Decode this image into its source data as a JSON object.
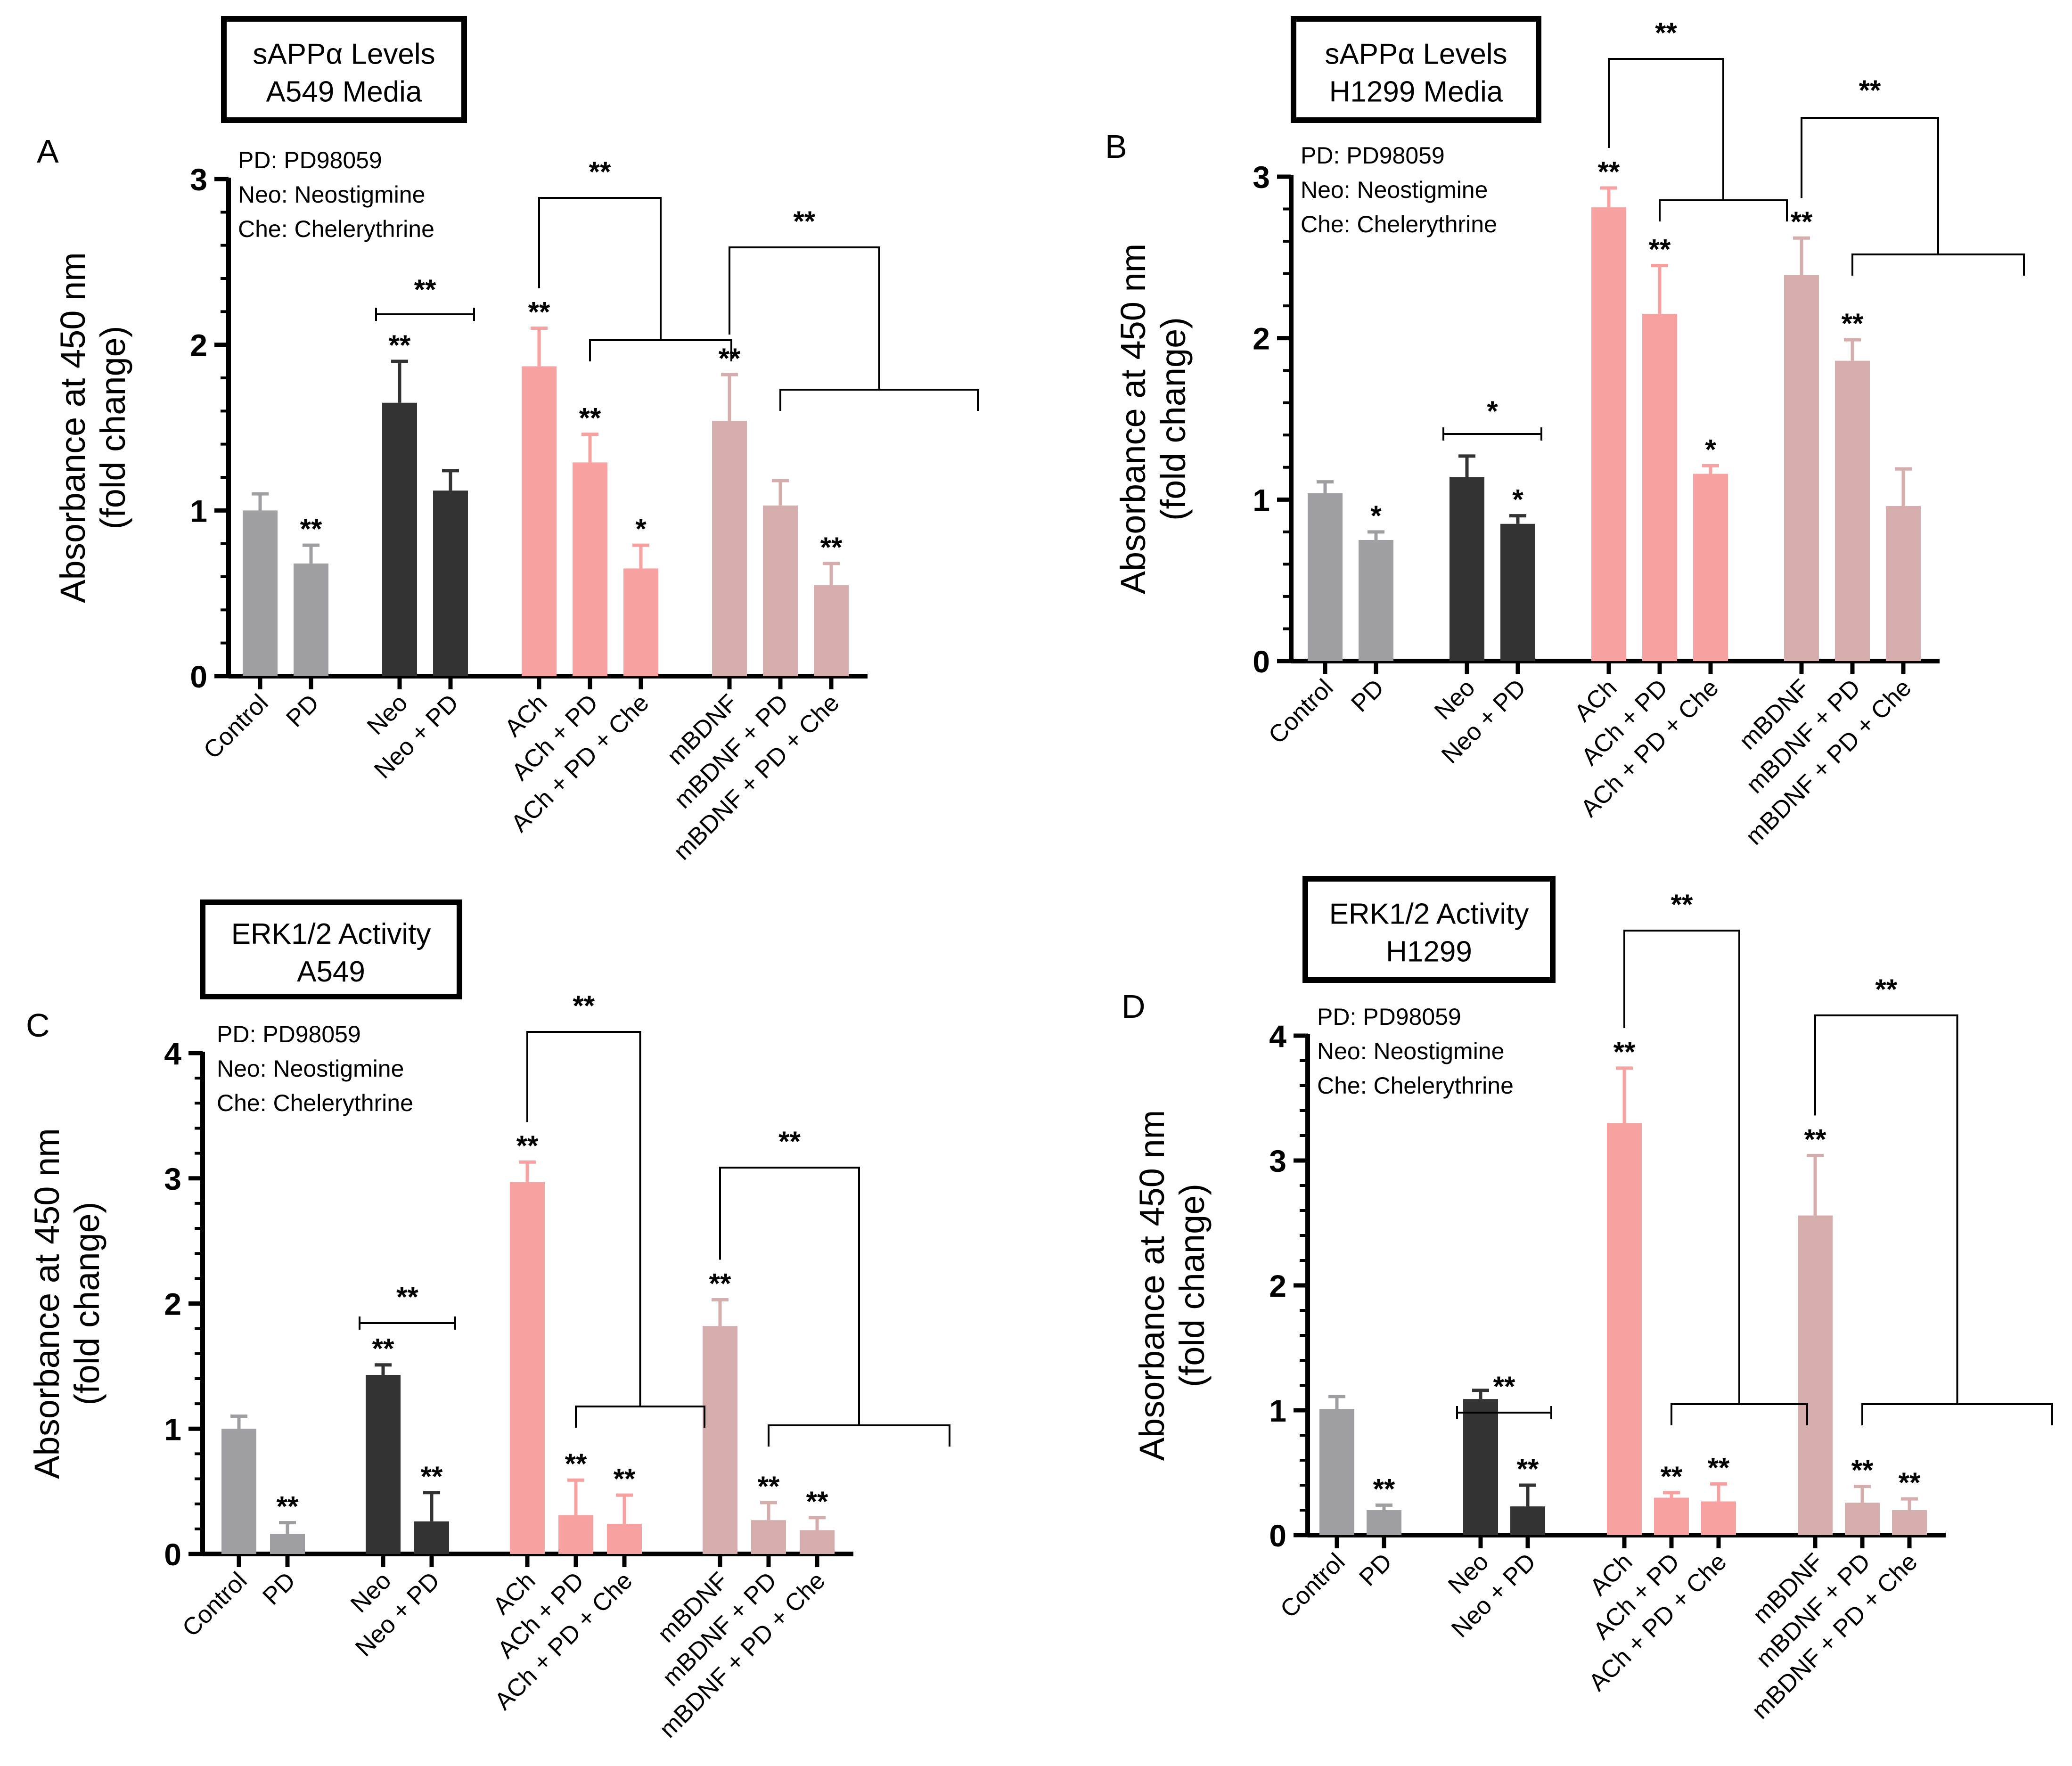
{
  "figure": {
    "colors": {
      "control": "#9e9ea3",
      "neo": "#333333",
      "ach": "#f7a1a1",
      "mbdnf": "#d6adad"
    },
    "legend": [
      "PD: PD98059",
      "Neo: Neostigmine",
      "Che: Chelerythrine"
    ]
  },
  "chart_data": [
    {
      "type": "bar",
      "panel": "A",
      "title": "sAPPα Levels\nA549 Media",
      "xlabel": "",
      "ylabel": "Absorbance at 450 nm\n(fold change)",
      "ylim": [
        0,
        3
      ],
      "yticks": [
        "0",
        "1",
        "2",
        "3"
      ],
      "categories": [
        "Control",
        "PD",
        "Neo",
        "Neo + PD",
        "ACh",
        "ACh + PD",
        "ACh + PD + Che",
        "mBDNF",
        "mBDNF + PD",
        "mBDNF + PD + Che"
      ],
      "values": [
        1.0,
        0.68,
        1.65,
        1.12,
        1.87,
        1.29,
        0.65,
        1.54,
        1.03,
        0.55
      ],
      "errors": [
        0.1,
        0.11,
        0.25,
        0.12,
        0.23,
        0.17,
        0.14,
        0.28,
        0.15,
        0.13
      ],
      "stars": [
        "",
        "**",
        "**",
        "",
        "**",
        "**",
        "*",
        "**",
        "",
        "**"
      ],
      "comparisons": [
        {
          "type": "line",
          "from": "Neo",
          "to": "Neo + PD",
          "label": "**"
        },
        {
          "type": "bracket",
          "from": "ACh",
          "to": [
            "ACh + PD",
            "ACh + PD + Che"
          ],
          "label": "**"
        },
        {
          "type": "bracket",
          "from": "mBDNF",
          "to": [
            "mBDNF + PD",
            "mBDNF + PD + Che"
          ],
          "label": "**"
        }
      ]
    },
    {
      "type": "bar",
      "panel": "B",
      "title": "sAPPα Levels\nH1299 Media",
      "xlabel": "",
      "ylabel": "Absorbance at 450 nm\n(fold change)",
      "ylim": [
        0,
        3
      ],
      "yticks": [
        "0",
        "1",
        "2",
        "3"
      ],
      "categories": [
        "Control",
        "PD",
        "Neo",
        "Neo + PD",
        "ACh",
        "ACh + PD",
        "ACh + PD + Che",
        "mBDNF",
        "mBDNF + PD",
        "mBDNF + PD + Che"
      ],
      "values": [
        1.04,
        0.75,
        1.14,
        0.85,
        2.81,
        2.15,
        1.16,
        2.39,
        1.86,
        0.96
      ],
      "errors": [
        0.07,
        0.05,
        0.13,
        0.05,
        0.12,
        0.3,
        0.05,
        0.23,
        0.13,
        0.23
      ],
      "stars": [
        "",
        "*",
        "",
        "*",
        "**",
        "**",
        "*",
        "**",
        "**",
        ""
      ],
      "comparisons": [
        {
          "type": "line",
          "from": "Neo",
          "to": "Neo + PD",
          "label": "*"
        },
        {
          "type": "bracket",
          "from": "ACh",
          "to": [
            "ACh + PD",
            "ACh + PD + Che"
          ],
          "label": "**"
        },
        {
          "type": "bracket",
          "from": "mBDNF",
          "to": [
            "mBDNF + PD",
            "mBDNF + PD + Che"
          ],
          "label": "**"
        }
      ]
    },
    {
      "type": "bar",
      "panel": "C",
      "title": "ERK1/2 Activity\nA549",
      "xlabel": "",
      "ylabel": "Absorbance at 450 nm\n(fold change)",
      "ylim": [
        0,
        4
      ],
      "yticks": [
        "0",
        "1",
        "2",
        "3",
        "4"
      ],
      "categories": [
        "Control",
        "PD",
        "Neo",
        "Neo + PD",
        "ACh",
        "ACh + PD",
        "ACh + PD + Che",
        "mBDNF",
        "mBDNF + PD",
        "mBDNF + PD + Che"
      ],
      "values": [
        1.0,
        0.16,
        1.43,
        0.26,
        2.97,
        0.31,
        0.24,
        1.82,
        0.27,
        0.19
      ],
      "errors": [
        0.1,
        0.09,
        0.08,
        0.23,
        0.16,
        0.28,
        0.23,
        0.21,
        0.14,
        0.1
      ],
      "stars": [
        "",
        "**",
        "**",
        "**",
        "**",
        "**",
        "**",
        "**",
        "**",
        "**"
      ],
      "comparisons": [
        {
          "type": "line",
          "from": "Neo",
          "to": "Neo + PD",
          "label": "**"
        },
        {
          "type": "bracket",
          "from": "ACh",
          "to": [
            "ACh + PD",
            "ACh + PD + Che"
          ],
          "label": "**"
        },
        {
          "type": "bracket",
          "from": "mBDNF",
          "to": [
            "mBDNF + PD",
            "mBDNF + PD + Che"
          ],
          "label": "**"
        }
      ]
    },
    {
      "type": "bar",
      "panel": "D",
      "title": "ERK1/2 Activity\nH1299",
      "xlabel": "",
      "ylabel": "Absorbance at 450 nm\n(fold change)",
      "ylim": [
        0,
        4
      ],
      "yticks": [
        "0",
        "1",
        "2",
        "3",
        "4"
      ],
      "categories": [
        "Control",
        "PD",
        "Neo",
        "Neo + PD",
        "ACh",
        "ACh + PD",
        "ACh + PD + Che",
        "mBDNF",
        "mBDNF + PD",
        "mBDNF + PD + Che"
      ],
      "values": [
        1.01,
        0.2,
        1.09,
        0.23,
        3.3,
        0.3,
        0.27,
        2.56,
        0.26,
        0.2
      ],
      "errors": [
        0.1,
        0.04,
        0.07,
        0.17,
        0.44,
        0.04,
        0.14,
        0.48,
        0.13,
        0.09
      ],
      "stars": [
        "",
        "**",
        "",
        "**",
        "**",
        "**",
        "**",
        "**",
        "**",
        "**"
      ],
      "comparisons": [
        {
          "type": "line",
          "from": "Neo",
          "to": "Neo + PD",
          "label": "**"
        },
        {
          "type": "bracket",
          "from": "ACh",
          "to": [
            "ACh + PD",
            "ACh + PD + Che"
          ],
          "label": "**"
        },
        {
          "type": "bracket",
          "from": "mBDNF",
          "to": [
            "mBDNF + PD",
            "mBDNF + PD + Che"
          ],
          "label": "**"
        }
      ]
    }
  ]
}
